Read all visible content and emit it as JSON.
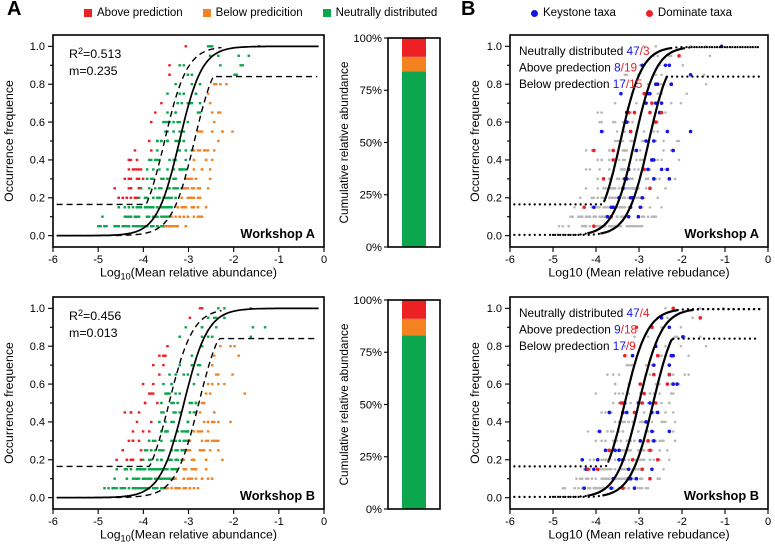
{
  "panels": {
    "a": {
      "label": "A"
    },
    "b": {
      "label": "B"
    }
  },
  "colors": {
    "above": "#ed2024",
    "below": "#f58220",
    "neutral": "#0ca64e",
    "keystone": "#1414e6",
    "dominant": "#ed2024",
    "gray": "#b8b8b8",
    "axis": "#000000"
  },
  "legend_a": {
    "items": [
      {
        "label": "Above prediction",
        "color": "#ed2024"
      },
      {
        "label": "Below predicition",
        "color": "#f58220"
      },
      {
        "label": "Neutrally distributed",
        "color": "#0ca64e"
      }
    ]
  },
  "legend_b": {
    "items": [
      {
        "label": "Keystone taxa",
        "color": "#1414e6"
      },
      {
        "label": "Dominate taxa",
        "color": "#ed2024"
      }
    ]
  },
  "chart_data": [
    {
      "id": "ncm-scatter-workshop-a",
      "type": "scatter",
      "style": "A",
      "workshop": "Workshop A",
      "ylabel": "Occurrence frequence",
      "xlabel_parts": [
        {
          "t": "Log"
        },
        {
          "t": "10",
          "sub": true
        },
        {
          "t": "(Mean relative abundance)"
        }
      ],
      "xlim": [
        -6,
        0
      ],
      "ylim": [
        -0.06,
        1.06
      ],
      "xticks": [
        -6,
        -5,
        -4,
        -3,
        -2,
        -1,
        0
      ],
      "yticks": [
        0,
        0.2,
        0.4,
        0.6,
        0.8,
        1
      ],
      "annotation_parts": [
        [
          {
            "t": "R"
          },
          {
            "t": "2",
            "sup": true
          },
          {
            "t": "=0.513"
          }
        ],
        [
          {
            "t": "m=0.235"
          }
        ]
      ],
      "fit": {
        "r2": 0.513,
        "m": 0.235
      },
      "model": {
        "k": 4.0,
        "x0": -3.2,
        "ci_shift": 0.33,
        "class_shift_up": 0.55,
        "upper_floor": 0.165,
        "lower_cap": 0.84
      },
      "points": {
        "mode": "ncm",
        "seed": 101,
        "row_base": 55,
        "row_decay": 5.5,
        "spread": 1.3
      }
    },
    {
      "id": "cumulative-bar-workshop-a",
      "type": "bar",
      "ylabel": "Cumulative relative abundance",
      "yticks": [
        {
          "label": "0%",
          "value": 0
        },
        {
          "label": "25%",
          "value": 25
        },
        {
          "label": "50%",
          "value": 50
        },
        {
          "label": "75%",
          "value": 75
        },
        {
          "label": "100%",
          "value": 100
        }
      ],
      "segments": [
        {
          "name": "Neutrally distributed",
          "value": 84,
          "color_key": "neutral"
        },
        {
          "name": "Below predicition",
          "value": 7,
          "color_key": "below"
        },
        {
          "name": "Above prediction",
          "value": 9,
          "color_key": "above"
        }
      ]
    },
    {
      "id": "ncm-scatter-workshop-b",
      "type": "scatter",
      "style": "A",
      "workshop": "Workshop B",
      "ylabel": "Occurrence frequence",
      "xlabel_parts": [
        {
          "t": "Log"
        },
        {
          "t": "10",
          "sub": true
        },
        {
          "t": "(Mean relative abundance)"
        }
      ],
      "xlim": [
        -6,
        0
      ],
      "ylim": [
        -0.06,
        1.06
      ],
      "xticks": [
        -6,
        -5,
        -4,
        -3,
        -2,
        -1,
        0
      ],
      "yticks": [
        0,
        0.2,
        0.4,
        0.6,
        0.8,
        1
      ],
      "annotation_parts": [
        [
          {
            "t": "R"
          },
          {
            "t": "2",
            "sup": true
          },
          {
            "t": "=0.456"
          }
        ],
        [
          {
            "t": "m=0.013"
          }
        ]
      ],
      "fit": {
        "r2": 0.456,
        "m": 0.013
      },
      "model": {
        "k": 3.8,
        "x0": -3.1,
        "ci_shift": 0.33,
        "class_shift_up": 0.55,
        "upper_floor": 0.165,
        "lower_cap": 0.84
      },
      "points": {
        "mode": "ncm",
        "seed": 202,
        "row_base": 55,
        "row_decay": 5.5,
        "spread": 1.3
      }
    },
    {
      "id": "cumulative-bar-workshop-b",
      "type": "bar",
      "ylabel": "Cumulative relative abundance",
      "yticks": [
        {
          "label": "0%",
          "value": 0
        },
        {
          "label": "25%",
          "value": 25
        },
        {
          "label": "50%",
          "value": 50
        },
        {
          "label": "75%",
          "value": 75
        },
        {
          "label": "100%",
          "value": 100
        }
      ],
      "segments": [
        {
          "name": "Neutrally distributed",
          "value": 83,
          "color_key": "neutral"
        },
        {
          "name": "Below predicition",
          "value": 8,
          "color_key": "below"
        },
        {
          "name": "Above prediction",
          "value": 9,
          "color_key": "above"
        }
      ]
    },
    {
      "id": "taxa-scatter-workshop-a",
      "type": "scatter",
      "style": "B",
      "workshop": "Workshop A",
      "ylabel": "Occurrence frequence",
      "xlabel_parts": [
        {
          "t": "Log10 (Mean relative rebudance)"
        }
      ],
      "xlim": [
        -6,
        0
      ],
      "ylim": [
        -0.06,
        1.06
      ],
      "xticks": [
        -6,
        -5,
        -4,
        -3,
        -2,
        -1,
        0
      ],
      "yticks": [
        0,
        0.2,
        0.4,
        0.6,
        0.8,
        1
      ],
      "counts": [
        {
          "label": "Neutrally distributed",
          "keystone": "47",
          "dominant": "3"
        },
        {
          "label": "Above predection",
          "keystone": "8",
          "dominant": "19"
        },
        {
          "label": "Below predection",
          "keystone": "17",
          "dominant": "15"
        }
      ],
      "model": {
        "k": 4.0,
        "x0": -3.1,
        "ci_shift": 0.33,
        "class_shift_up": 0.55,
        "upper_floor": 0.165,
        "lower_cap": 0.84
      },
      "points": {
        "mode": "taxa",
        "seed": 303,
        "row_base": 58,
        "row_decay": 6,
        "spread": 1.15,
        "p_blue": 0.14,
        "p_red": 0.07
      }
    },
    {
      "id": "taxa-scatter-workshop-b",
      "type": "scatter",
      "style": "B",
      "workshop": "Workshop B",
      "ylabel": "Occurrence frequence",
      "xlabel_parts": [
        {
          "t": "Log10 (Mean relative rebudance)"
        }
      ],
      "xlim": [
        -6,
        0
      ],
      "ylim": [
        -0.06,
        1.06
      ],
      "xticks": [
        -6,
        -5,
        -4,
        -3,
        -2,
        -1,
        0
      ],
      "yticks": [
        0,
        0.2,
        0.4,
        0.6,
        0.8,
        1
      ],
      "counts": [
        {
          "label": "Neutrally distributed",
          "keystone": "47",
          "dominant": "4"
        },
        {
          "label": "Above predection",
          "keystone": "9",
          "dominant": "18"
        },
        {
          "label": "Below predection",
          "keystone": "17",
          "dominant": "9"
        }
      ],
      "model": {
        "k": 3.8,
        "x0": -3.0,
        "ci_shift": 0.33,
        "class_shift_up": 0.55,
        "upper_floor": 0.165,
        "lower_cap": 0.84
      },
      "points": {
        "mode": "taxa",
        "seed": 404,
        "row_base": 58,
        "row_decay": 6,
        "spread": 1.15,
        "p_blue": 0.14,
        "p_red": 0.07
      }
    }
  ]
}
